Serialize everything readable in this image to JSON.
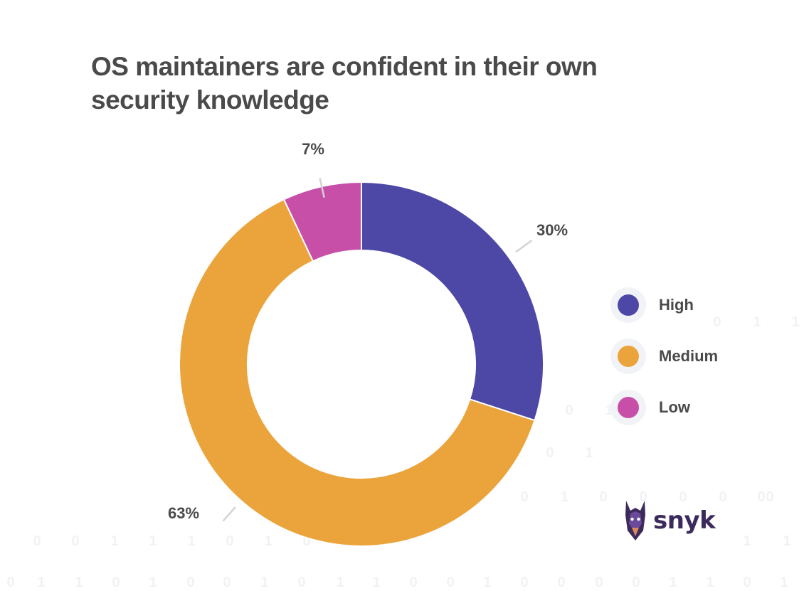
{
  "chart_data": {
    "type": "pie",
    "donut": true,
    "title": "OS maintainers are confident in their own security knowledge",
    "categories": [
      "High",
      "Medium",
      "Low"
    ],
    "values": [
      30,
      63,
      7
    ],
    "labels": [
      "30%",
      "63%",
      "7%"
    ],
    "colors": [
      "#4d47a6",
      "#eba43c",
      "#c84fa7"
    ],
    "legend_position": "right"
  },
  "background_digits": {
    "row1": [
      "0",
      "1",
      "1"
    ],
    "row2": [
      "0",
      "1"
    ],
    "row3": [
      "0",
      "1"
    ],
    "row4": [
      "0",
      "1",
      "0",
      "0",
      "0",
      "0",
      "0",
      "0"
    ],
    "row5": [
      "0",
      "0",
      "1",
      "1",
      "1",
      "0",
      "1",
      "0",
      "1",
      "1"
    ],
    "row6": [
      "0",
      "1",
      "1",
      "0",
      "1",
      "0",
      "0",
      "1",
      "0",
      "1",
      "1",
      "0",
      "0",
      "1",
      "0",
      "0",
      "0",
      "0",
      "1",
      "1",
      "0",
      "1"
    ]
  },
  "logo": {
    "name": "snyk-logo",
    "text": "snyk"
  }
}
